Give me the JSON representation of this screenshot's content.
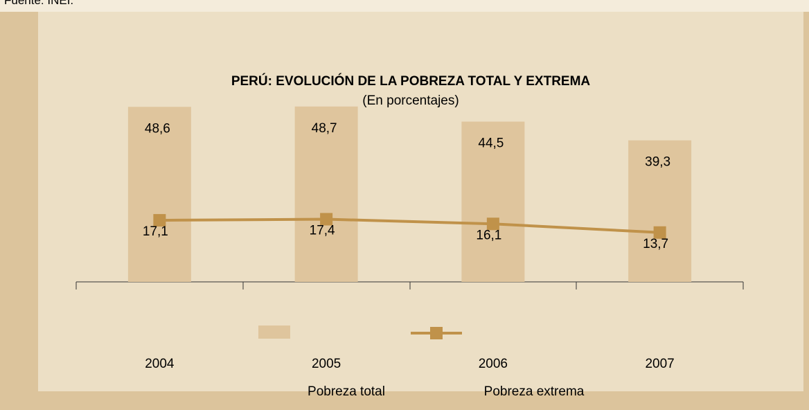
{
  "source": "Fuente: INEI.",
  "chart_data": {
    "type": "bar_line",
    "title": "PERÚ: EVOLUCIÓN DE LA POBREZA TOTAL Y EXTREMA",
    "subtitle": "(En porcentajes)",
    "categories": [
      "2004",
      "2005",
      "2006",
      "2007"
    ],
    "ylim": [
      0,
      60
    ],
    "series": [
      {
        "name": "Pobreza total",
        "type": "bar",
        "color": "#dfc59d",
        "values": [
          48.6,
          48.7,
          44.5,
          39.3
        ],
        "value_labels": [
          "48,6",
          "48,7",
          "44,5",
          "39,3"
        ]
      },
      {
        "name": "Pobreza extrema",
        "type": "line",
        "color": "#c0924a",
        "values": [
          17.1,
          17.4,
          16.1,
          13.7
        ],
        "value_labels": [
          "17,1",
          "17,4",
          "16,1",
          "13,7"
        ]
      }
    ]
  }
}
